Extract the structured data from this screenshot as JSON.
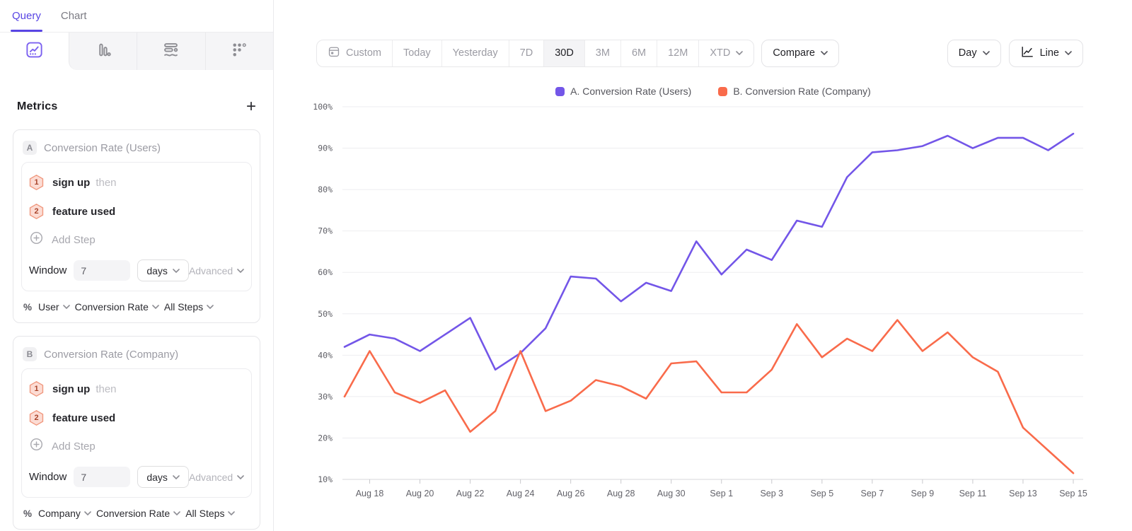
{
  "sidebar": {
    "tabs": [
      {
        "label": "Query"
      },
      {
        "label": "Chart"
      }
    ],
    "chart_type_tabs": [
      {
        "icon": "line-chart",
        "selected": true
      },
      {
        "icon": "bar-chart",
        "selected": false
      },
      {
        "icon": "funnel",
        "selected": false
      },
      {
        "icon": "retention-grid",
        "selected": false
      }
    ],
    "metrics": {
      "title": "Metrics",
      "add_label": "+",
      "cards": [
        {
          "badge": "A",
          "title": "Conversion Rate (Users)",
          "steps": [
            {
              "num": "1",
              "label": "sign up",
              "suffix": "then"
            },
            {
              "num": "2",
              "label": "feature used",
              "suffix": ""
            }
          ],
          "add_step_label": "Add Step",
          "window": {
            "label": "Window",
            "value": "7",
            "unit": "days",
            "advanced_label": "Advanced"
          },
          "breakdown": {
            "symbol": "%",
            "entity": "User",
            "metric": "Conversion Rate",
            "scope": "All Steps"
          }
        },
        {
          "badge": "B",
          "title": "Conversion Rate (Company)",
          "steps": [
            {
              "num": "1",
              "label": "sign up",
              "suffix": "then"
            },
            {
              "num": "2",
              "label": "feature used",
              "suffix": ""
            }
          ],
          "add_step_label": "Add Step",
          "window": {
            "label": "Window",
            "value": "7",
            "unit": "days",
            "advanced_label": "Advanced"
          },
          "breakdown": {
            "symbol": "%",
            "entity": "Company",
            "metric": "Conversion Rate",
            "scope": "All Steps"
          }
        }
      ]
    }
  },
  "toolbar": {
    "date_ranges": [
      "Custom",
      "Today",
      "Yesterday",
      "7D",
      "30D",
      "3M",
      "6M",
      "12M",
      "XTD"
    ],
    "active_range": "30D",
    "compare_label": "Compare",
    "granularity_label": "Day",
    "chart_type_label": "Line"
  },
  "legend": {
    "items": [
      {
        "label": "A. Conversion Rate (Users)",
        "color": "#7356E8"
      },
      {
        "label": "B. Conversion Rate (Company)",
        "color": "#F96B4B"
      }
    ]
  },
  "chart_data": {
    "type": "line",
    "x": [
      "Aug 17",
      "Aug 18",
      "Aug 19",
      "Aug 20",
      "Aug 21",
      "Aug 22",
      "Aug 23",
      "Aug 24",
      "Aug 25",
      "Aug 26",
      "Aug 27",
      "Aug 28",
      "Aug 29",
      "Aug 30",
      "Aug 31",
      "Sep 1",
      "Sep 2",
      "Sep 3",
      "Sep 4",
      "Sep 5",
      "Sep 6",
      "Sep 7",
      "Sep 8",
      "Sep 9",
      "Sep 10",
      "Sep 11",
      "Sep 12",
      "Sep 13",
      "Sep 14",
      "Sep 15"
    ],
    "series": [
      {
        "name": "A. Conversion Rate (Users)",
        "color": "#7356E8",
        "values": [
          42,
          45,
          44,
          41,
          45,
          49,
          36.5,
          40.5,
          46.5,
          59,
          58.5,
          53,
          57.5,
          55.5,
          67.5,
          59.5,
          65.5,
          63,
          72.5,
          71,
          83,
          89,
          89.5,
          90.5,
          93,
          90,
          92.5,
          92.5,
          89.5,
          93.5
        ]
      },
      {
        "name": "B. Conversion Rate (Company)",
        "color": "#F96B4B",
        "values": [
          30,
          41,
          31,
          28.5,
          31.5,
          21.5,
          26.5,
          41,
          26.5,
          29,
          34,
          32.5,
          29.5,
          38,
          38.5,
          31,
          31,
          36.5,
          47.5,
          39.5,
          44,
          41,
          48.5,
          41,
          45.5,
          39.5,
          36,
          22.5,
          17,
          11.5
        ]
      }
    ],
    "y_tick_labels": [
      "100%",
      "90%",
      "80%",
      "70%",
      "60%",
      "50%",
      "40%",
      "30%",
      "20%",
      "10%"
    ],
    "y_tick_values": [
      100,
      90,
      80,
      70,
      60,
      50,
      40,
      30,
      20,
      10
    ],
    "x_label_start_index": 1,
    "x_label_step": 2,
    "ylim": [
      10,
      100
    ],
    "grid": true,
    "unit": "%",
    "legend_position": "top"
  }
}
